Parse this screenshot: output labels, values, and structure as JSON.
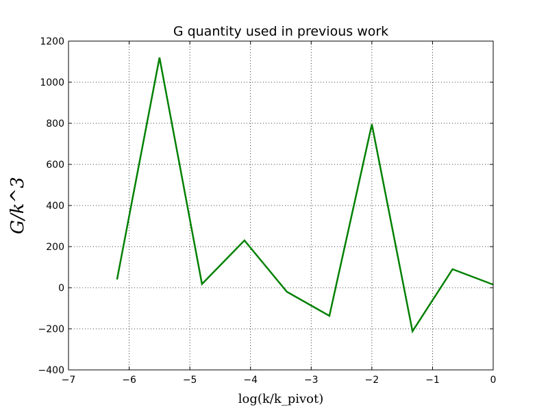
{
  "chart_data": {
    "type": "line",
    "title": "G quantity used in previous work",
    "xlabel": "log(k/k_pivot)",
    "ylabel": "G/k^3",
    "xlim": [
      -7,
      0
    ],
    "ylim": [
      -400,
      1200
    ],
    "xticks": [
      -7,
      -6,
      -5,
      -4,
      -3,
      -2,
      -1,
      0
    ],
    "xtick_labels": [
      "−7",
      "−6",
      "−5",
      "−4",
      "−3",
      "−2",
      "−1",
      "0"
    ],
    "yticks": [
      -400,
      -200,
      0,
      200,
      400,
      600,
      800,
      1000,
      1200
    ],
    "ytick_labels": [
      "−400",
      "−200",
      "0",
      "200",
      "400",
      "600",
      "800",
      "1000",
      "1200"
    ],
    "grid": true,
    "color": "#008000",
    "series": [
      {
        "x": [
          -6.2,
          -5.5,
          -4.8,
          -4.1,
          -3.4,
          -2.7,
          -2.0,
          -1.33,
          -0.67,
          0.0
        ],
        "y": [
          40,
          1120,
          18,
          230,
          -20,
          -137,
          795,
          -212,
          90,
          15
        ]
      }
    ]
  }
}
